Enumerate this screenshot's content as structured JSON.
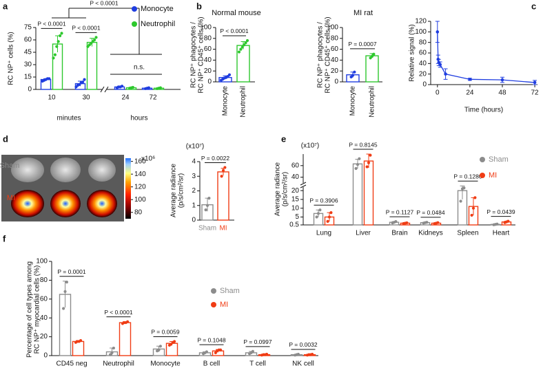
{
  "chart_data": [
    {
      "type": "bar",
      "label": "a",
      "ylabel": "RC NP⁺ cells (%)",
      "categories": [
        "10",
        "30",
        "24",
        "72"
      ],
      "group_labels": [
        "minutes",
        "hours"
      ],
      "x_axis_break": true,
      "series": [
        {
          "name": "Monocyte",
          "color": "#1f3de0",
          "values": [
            12,
            7,
            3,
            1.5
          ],
          "errors": [
            1,
            3,
            1,
            0.5
          ],
          "points": [
            [
              10,
              11,
              12,
              13,
              13
            ],
            [
              3,
              5,
              6,
              8,
              9,
              12
            ],
            [
              2,
              3,
              3,
              4
            ],
            [
              1,
              1.5,
              2
            ]
          ]
        },
        {
          "name": "Neutrophil",
          "color": "#2dc82d",
          "values": [
            55,
            57,
            2,
            1.5
          ],
          "errors": [
            10,
            5,
            0.5,
            0.5
          ],
          "points": [
            [
              38,
              42,
              52,
              58,
              65,
              68
            ],
            [
              52,
              54,
              56,
              58,
              60,
              63
            ],
            [
              1.5,
              2,
              2.5
            ],
            [
              1,
              1.5,
              2
            ]
          ]
        }
      ],
      "ylim": [
        0,
        75
      ],
      "yticks": [
        0,
        15,
        30,
        45,
        60,
        75
      ],
      "p_values": [
        "P < 0.0001",
        "P < 0.0001",
        null,
        null
      ],
      "group_annotations": [
        "P < 0.0001",
        "n.s."
      ]
    },
    {
      "type": "bar",
      "label": "b",
      "title": "Normal mouse",
      "ylabel": [
        "RC NP⁺ phagocytes /",
        "RC NP⁺ CD45⁺ cells (%)"
      ],
      "categories": [
        "Monocyte",
        "Neutrophil"
      ],
      "colors": [
        "#1f3de0",
        "#2dc82d"
      ],
      "values": [
        8,
        67
      ],
      "errors": [
        3,
        7
      ],
      "points": [
        [
          3,
          5,
          7,
          8,
          10,
          13
        ],
        [
          55,
          60,
          64,
          68,
          72,
          76
        ]
      ],
      "ylim": [
        0,
        100
      ],
      "yticks": [
        0,
        20,
        40,
        60,
        80,
        100
      ],
      "p_value": "P < 0.0001"
    },
    {
      "type": "bar",
      "title": "MI rat",
      "ylabel": [
        "RC NP⁺ phagocytes /",
        "RC NP⁺ CD45⁺ cells (%)"
      ],
      "categories": [
        "Monocyte",
        "Neutrophil"
      ],
      "colors": [
        "#1f3de0",
        "#2dc82d"
      ],
      "values": [
        13,
        48
      ],
      "errors": [
        5,
        4
      ],
      "points": [
        [
          9,
          12,
          18
        ],
        [
          44,
          47,
          51
        ]
      ],
      "ylim": [
        0,
        100
      ],
      "yticks": [
        0,
        20,
        40,
        60,
        80,
        100
      ],
      "p_value": "P = 0.0007"
    },
    {
      "type": "line",
      "label": "c",
      "ylabel": "Relative signal (%)",
      "xlabel": "Time (hours)",
      "color": "#1f3de0",
      "x": [
        0,
        0.5,
        1,
        2,
        6,
        24,
        48,
        72
      ],
      "values": [
        100,
        48,
        42,
        38,
        20,
        10,
        9,
        4
      ],
      "errors": [
        20,
        8,
        6,
        5,
        10,
        2,
        5,
        4
      ],
      "xlim": [
        -5,
        74
      ],
      "xticks": [
        0,
        24,
        48,
        72
      ],
      "ylim": [
        0,
        120
      ],
      "yticks": [
        0,
        20,
        40,
        60,
        80,
        100,
        120
      ]
    },
    {
      "type": "bar",
      "label": "d",
      "multiplier": "(x10⁷)",
      "ylabel": [
        "Average radiance",
        "(p/s/cm²/sr)"
      ],
      "categories": [
        "Sham",
        "MI"
      ],
      "colors": [
        "#8c8c8c",
        "#f03c14"
      ],
      "values": [
        1.05,
        3.3
      ],
      "errors": [
        0.45,
        0.25
      ],
      "points": [
        [
          0.7,
          1.0,
          1.5
        ],
        [
          3.0,
          3.4,
          3.6
        ]
      ],
      "ylim": [
        0,
        4
      ],
      "yticks": [
        0,
        1,
        2,
        3,
        4
      ],
      "p_value": "P = 0.0022",
      "image_labels": [
        "Sham",
        "MI"
      ],
      "colorbar": {
        "label": "x10⁶",
        "lim": [
          70,
          165
        ],
        "ticks": [
          80,
          100,
          120,
          140,
          160
        ]
      }
    },
    {
      "type": "bar",
      "label": "e",
      "multiplier": "(x10⁷)",
      "ylabel": [
        "Average radiance",
        "(p/s/cm²/sr)"
      ],
      "categories": [
        "Lung",
        "Liver",
        "Brain",
        "Kidneys",
        "Spleen",
        "Heart"
      ],
      "series": [
        {
          "name": "Sham",
          "color": "#8c8c8c",
          "values": [
            7,
            63,
            2,
            1.8,
            20,
            0.8
          ],
          "errors": [
            2,
            8,
            0.4,
            0.3,
            5,
            0.2
          ],
          "points": [
            [
              5,
              7,
              9
            ],
            [
              55,
              62,
              72
            ],
            [
              1.6,
              2,
              2.4
            ],
            [
              1.5,
              1.8,
              2
            ],
            [
              14,
              21,
              21.5
            ],
            [
              0.6,
              0.8,
              1
            ]
          ]
        },
        {
          "name": "MI",
          "color": "#f03c14",
          "values": [
            5,
            68,
            1.5,
            1.5,
            11,
            2.2
          ],
          "errors": [
            2.5,
            12,
            0.3,
            0.3,
            5,
            0.4
          ],
          "points": [
            [
              2.5,
              5,
              7.5
            ],
            [
              58,
              65,
              78
            ],
            [
              1.3,
              1.5,
              1.7
            ],
            [
              1.2,
              1.5,
              1.8
            ],
            [
              6,
              10,
              16
            ],
            [
              1.8,
              2.2,
              2.6
            ]
          ]
        }
      ],
      "ylim": [
        0.5,
        80
      ],
      "axis_break": [
        22,
        30
      ],
      "yticks": [
        0.5,
        5,
        10,
        15,
        20,
        40,
        60
      ],
      "p_values": [
        "P = 0.3906",
        "P = 0.8145",
        "P = 0.1127",
        "P = 0.0484",
        "P = 0.1280",
        "P = 0.0439"
      ]
    },
    {
      "type": "bar",
      "label": "f",
      "ylabel": [
        "Percentage of cell types among",
        "RC NP⁺ myocardial cells (%)"
      ],
      "categories": [
        "CD45 neg",
        "Neutrophil",
        "Monocyte",
        "B cell",
        "T cell",
        "NK cell"
      ],
      "series": [
        {
          "name": "Sham",
          "color": "#8c8c8c",
          "values": [
            65,
            4,
            7,
            3,
            3,
            1
          ],
          "errors": [
            14,
            4,
            3,
            1,
            1.5,
            0.5
          ],
          "points": [
            [
              50,
              68,
              78
            ],
            [
              1,
              3,
              8
            ],
            [
              5,
              6,
              10
            ],
            [
              2,
              3,
              4
            ],
            [
              2,
              3,
              4.5
            ],
            [
              0.5,
              1,
              1.5
            ]
          ]
        },
        {
          "name": "MI",
          "color": "#f03c14",
          "values": [
            15,
            35,
            13,
            5,
            1,
            1
          ],
          "errors": [
            1,
            1,
            2,
            1.5,
            0.5,
            0.5
          ],
          "points": [
            [
              14,
              15,
              15,
              16
            ],
            [
              34,
              35,
              35,
              36
            ],
            [
              11,
              12,
              14,
              15
            ],
            [
              3,
              5,
              6,
              6
            ],
            [
              0.5,
              1,
              1,
              1.5
            ],
            [
              0.5,
              1,
              1,
              1.5
            ]
          ]
        }
      ],
      "ylim": [
        0,
        100
      ],
      "yticks": [
        0,
        20,
        40,
        60,
        80,
        100
      ],
      "p_values": [
        "P = 0.0001",
        "P < 0.0001",
        "P = 0.0059",
        "P = 0.1048",
        "P = 0.0997",
        "P = 0.0032"
      ]
    }
  ]
}
